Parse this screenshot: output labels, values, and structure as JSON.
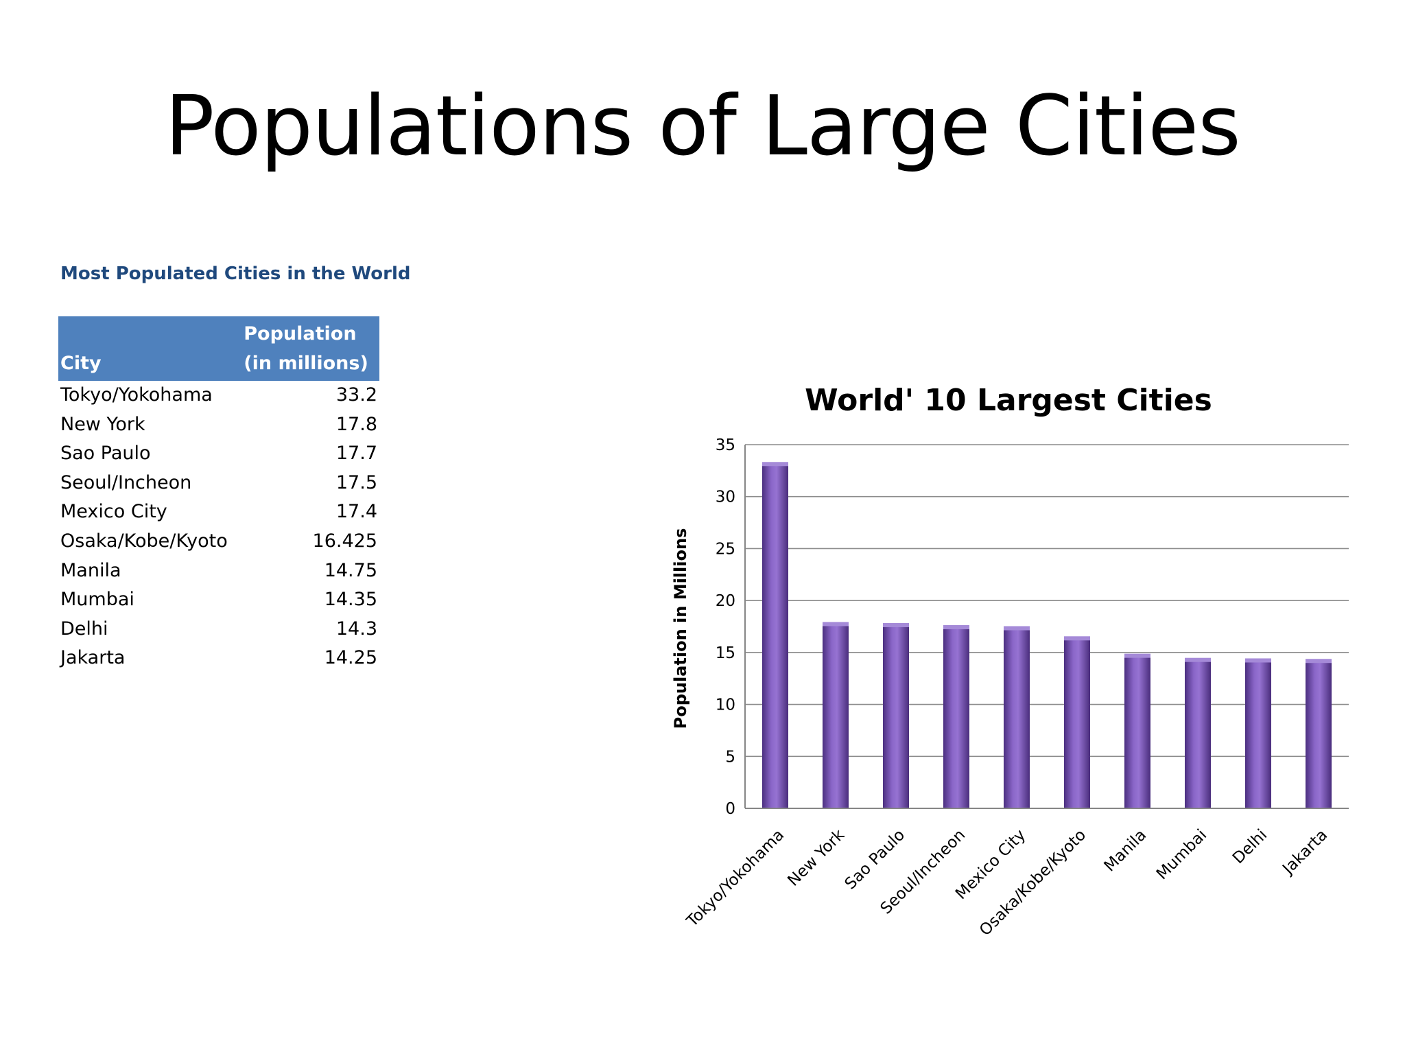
{
  "slide": {
    "title": "Populations of Large Cities"
  },
  "table": {
    "caption": "Most Populated Cities in the World",
    "header_city": "City",
    "header_pop_line1": "Population",
    "header_pop_line2": "(in millions)",
    "rows": [
      {
        "city": "Tokyo/Yokohama",
        "pop": "33.2"
      },
      {
        "city": "New York",
        "pop": "17.8"
      },
      {
        "city": "Sao Paulo",
        "pop": "17.7"
      },
      {
        "city": "Seoul/Incheon",
        "pop": "17.5"
      },
      {
        "city": "Mexico City",
        "pop": "17.4"
      },
      {
        "city": "Osaka/Kobe/Kyoto",
        "pop": "16.425"
      },
      {
        "city": "Manila",
        "pop": "14.75"
      },
      {
        "city": "Mumbai",
        "pop": "14.35"
      },
      {
        "city": "Delhi",
        "pop": "14.3"
      },
      {
        "city": "Jakarta",
        "pop": "14.25"
      }
    ]
  },
  "chart_data": {
    "type": "bar",
    "title": "World' 10 Largest Cities",
    "xlabel": "",
    "ylabel": "Population in Millions",
    "categories": [
      "Tokyo/Yokohama",
      "New York",
      "Sao Paulo",
      "Seoul/Incheon",
      "Mexico City",
      "Osaka/Kobe/Kyoto",
      "Manila",
      "Mumbai",
      "Delhi",
      "Jakarta"
    ],
    "values": [
      33.2,
      17.8,
      17.7,
      17.5,
      17.4,
      16.425,
      14.75,
      14.35,
      14.3,
      14.25
    ],
    "ylim": [
      0,
      35
    ],
    "yticks": [
      0,
      5,
      10,
      15,
      20,
      25,
      30,
      35
    ],
    "grid": true,
    "legend": "none",
    "bar_color": "#7b55b8"
  }
}
